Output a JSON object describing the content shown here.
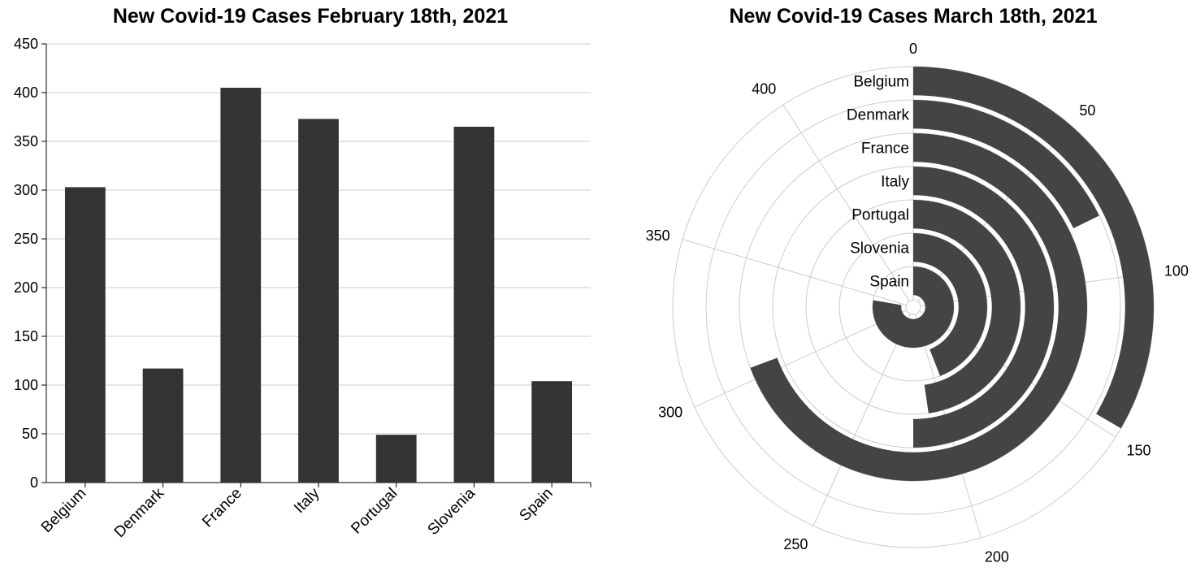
{
  "chart_data": [
    {
      "type": "bar",
      "title": "New Covid-19 Cases February 18th, 2021",
      "categories": [
        "Belgium",
        "Denmark",
        "France",
        "Italy",
        "Portugal",
        "Slovenia",
        "Spain"
      ],
      "values": [
        303,
        117,
        405,
        373,
        49,
        365,
        104
      ],
      "ylim": [
        0,
        450
      ],
      "yticks": [
        "0",
        "50",
        "100",
        "150",
        "200",
        "250",
        "300",
        "350",
        "400",
        "450"
      ],
      "grid": true,
      "color": "#333333"
    },
    {
      "type": "radial-bar",
      "title": "New Covid-19 Cases March 18th, 2021",
      "categories": [
        "Belgium",
        "Denmark",
        "France",
        "Italy",
        "Portugal",
        "Slovenia",
        "Spain"
      ],
      "values": [
        147,
        78,
        305,
        220,
        210,
        194,
        342
      ],
      "angle_range": [
        0,
        440
      ],
      "angle_ticks": [
        "0",
        "50",
        "100",
        "150",
        "200",
        "250",
        "300",
        "350",
        "400"
      ],
      "grid": true,
      "color": "#444444"
    }
  ]
}
